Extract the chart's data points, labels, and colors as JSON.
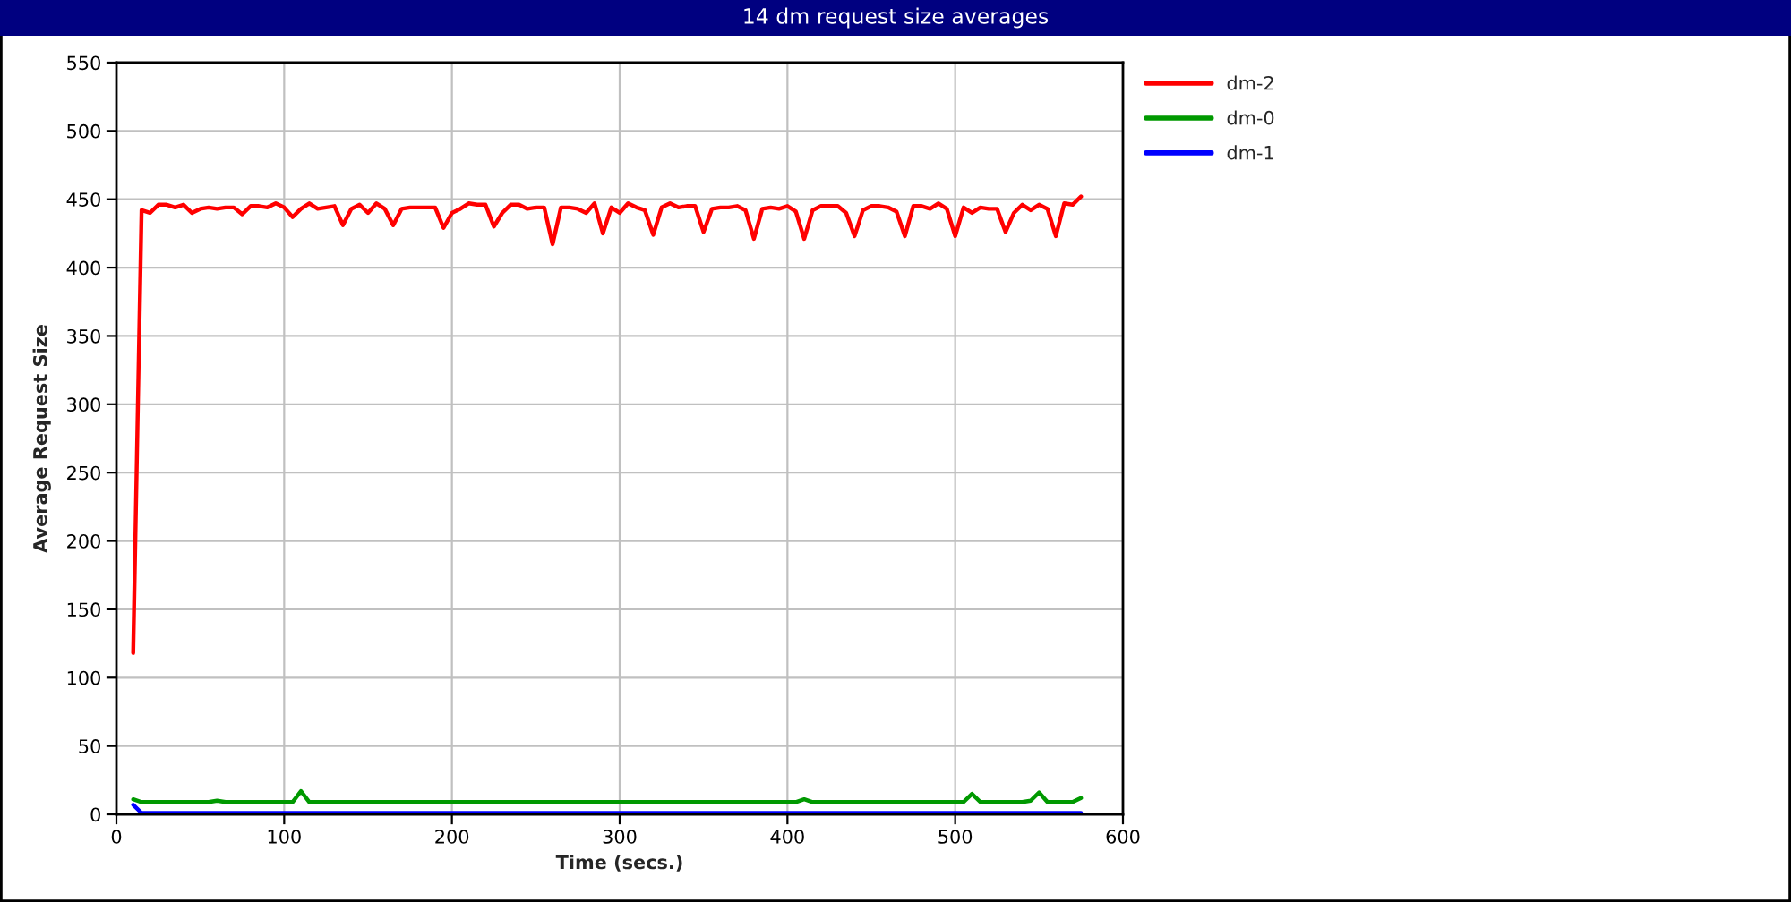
{
  "chart_data": {
    "type": "line",
    "title": "14 dm request size averages",
    "xlabel": "Time (secs.)",
    "ylabel": "Average Request Size",
    "x": [
      10,
      15,
      20,
      25,
      30,
      35,
      40,
      45,
      50,
      55,
      60,
      65,
      70,
      75,
      80,
      85,
      90,
      95,
      100,
      105,
      110,
      115,
      120,
      125,
      130,
      135,
      140,
      145,
      150,
      155,
      160,
      165,
      170,
      175,
      180,
      185,
      190,
      195,
      200,
      205,
      210,
      215,
      220,
      225,
      230,
      235,
      240,
      245,
      250,
      255,
      260,
      265,
      270,
      275,
      280,
      285,
      290,
      295,
      300,
      305,
      310,
      315,
      320,
      325,
      330,
      335,
      340,
      345,
      350,
      355,
      360,
      365,
      370,
      375,
      380,
      385,
      390,
      395,
      400,
      405,
      410,
      415,
      420,
      425,
      430,
      435,
      440,
      445,
      450,
      455,
      460,
      465,
      470,
      475,
      480,
      485,
      490,
      495,
      500,
      505,
      510,
      515,
      520,
      525,
      530,
      535,
      540,
      545,
      550,
      555,
      560,
      565,
      570,
      575
    ],
    "series": [
      {
        "name": "dm-2",
        "color": "#ff0000",
        "values": [
          118,
          442,
          440,
          446,
          446,
          444,
          446,
          440,
          443,
          444,
          443,
          444,
          444,
          439,
          445,
          445,
          444,
          447,
          444,
          437,
          443,
          447,
          443,
          444,
          445,
          431,
          443,
          446,
          440,
          447,
          443,
          431,
          443,
          444,
          444,
          444,
          444,
          429,
          440,
          443,
          447,
          446,
          446,
          430,
          440,
          446,
          446,
          443,
          444,
          444,
          417,
          444,
          444,
          443,
          440,
          447,
          425,
          444,
          440,
          447,
          444,
          442,
          424,
          444,
          447,
          444,
          445,
          445,
          426,
          443,
          444,
          444,
          445,
          442,
          421,
          443,
          444,
          443,
          445,
          441,
          421,
          442,
          445,
          445,
          445,
          440,
          423,
          442,
          445,
          445,
          444,
          441,
          423,
          445,
          445,
          443,
          447,
          443,
          423,
          444,
          440,
          444,
          443,
          443,
          426,
          440,
          446,
          442,
          446,
          443,
          423,
          447,
          446,
          452
        ]
      },
      {
        "name": "dm-0",
        "color": "#009900",
        "values": [
          11,
          9,
          9,
          9,
          9,
          9,
          9,
          9,
          9,
          9,
          10,
          9,
          9,
          9,
          9,
          9,
          9,
          9,
          9,
          9,
          17,
          9,
          9,
          9,
          9,
          9,
          9,
          9,
          9,
          9,
          9,
          9,
          9,
          9,
          9,
          9,
          9,
          9,
          9,
          9,
          9,
          9,
          9,
          9,
          9,
          9,
          9,
          9,
          9,
          9,
          9,
          9,
          9,
          9,
          9,
          9,
          9,
          9,
          9,
          9,
          9,
          9,
          9,
          9,
          9,
          9,
          9,
          9,
          9,
          9,
          9,
          9,
          9,
          9,
          9,
          9,
          9,
          9,
          9,
          9,
          11,
          9,
          9,
          9,
          9,
          9,
          9,
          9,
          9,
          9,
          9,
          9,
          9,
          9,
          9,
          9,
          9,
          9,
          9,
          9,
          15,
          9,
          9,
          9,
          9,
          9,
          9,
          10,
          16,
          9,
          9,
          9,
          9,
          12
        ]
      },
      {
        "name": "dm-1",
        "color": "#0000ff",
        "values": [
          7,
          1,
          1,
          1,
          1,
          1,
          1,
          1,
          1,
          1,
          1,
          1,
          1,
          1,
          1,
          1,
          1,
          1,
          1,
          1,
          1,
          1,
          1,
          1,
          1,
          1,
          1,
          1,
          1,
          1,
          1,
          1,
          1,
          1,
          1,
          1,
          1,
          1,
          1,
          1,
          1,
          1,
          1,
          1,
          1,
          1,
          1,
          1,
          1,
          1,
          1,
          1,
          1,
          1,
          1,
          1,
          1,
          1,
          1,
          1,
          1,
          1,
          1,
          1,
          1,
          1,
          1,
          1,
          1,
          1,
          1,
          1,
          1,
          1,
          1,
          1,
          1,
          1,
          1,
          1,
          1,
          1,
          1,
          1,
          1,
          1,
          1,
          1,
          1,
          1,
          1,
          1,
          1,
          1,
          1,
          1,
          1,
          1,
          1,
          1,
          1,
          1,
          1,
          1,
          1,
          1,
          1,
          1,
          1,
          1,
          1,
          1,
          1,
          1
        ]
      }
    ],
    "xlim": [
      0,
      600
    ],
    "xticks": [
      0,
      100,
      200,
      300,
      400,
      500,
      600
    ],
    "ylim": [
      0,
      550
    ],
    "yticks": [
      0,
      50,
      100,
      150,
      200,
      250,
      300,
      350,
      400,
      450,
      500,
      550
    ],
    "grid": true,
    "legend": "right",
    "line_style": "solid"
  }
}
